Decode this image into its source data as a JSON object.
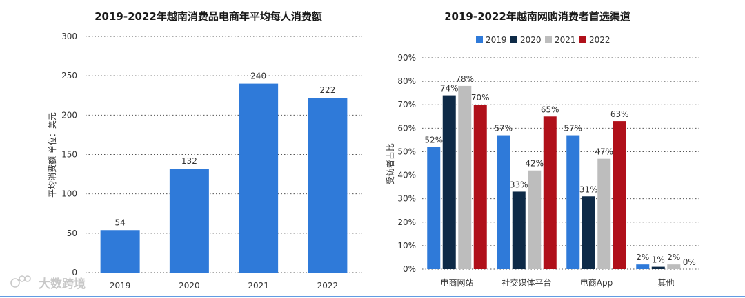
{
  "colors": {
    "c2019": "#2f7ad9",
    "c2020": "#0e2a47",
    "c2021": "#bdbdbd",
    "c2022": "#b0101a",
    "bar_left": "#2f7ad9"
  },
  "watermark": {
    "text": "大数跨境"
  },
  "chart_data": [
    {
      "type": "bar",
      "title": "2019-2022年越南消费品电商年平均每人消费额",
      "ylabel": "平均消费额 单位：美元",
      "xlabel": "",
      "categories": [
        "2019",
        "2020",
        "2021",
        "2022"
      ],
      "values": [
        54,
        132,
        240,
        222
      ],
      "value_labels": [
        "54",
        "132",
        "240",
        "222"
      ],
      "ylim": [
        0,
        300
      ],
      "yticks": [
        0,
        50,
        100,
        150,
        200,
        250,
        300
      ],
      "ytick_labels": [
        "0",
        "50",
        "100",
        "150",
        "200",
        "250",
        "300"
      ],
      "grid": true
    },
    {
      "type": "bar",
      "title": "2019-2022年越南网购消费者首选渠道",
      "ylabel": "受访者占比",
      "xlabel": "",
      "categories": [
        "电商网站",
        "社交媒体平台",
        "电商App",
        "其他"
      ],
      "series": [
        {
          "name": "2019",
          "values": [
            52,
            57,
            57,
            2
          ],
          "labels": [
            "52%",
            "57%",
            "57%",
            "2%"
          ]
        },
        {
          "name": "2020",
          "values": [
            74,
            33,
            31,
            1
          ],
          "labels": [
            "74%",
            "33%",
            "31%",
            "1%"
          ]
        },
        {
          "name": "2021",
          "values": [
            78,
            42,
            47,
            2
          ],
          "labels": [
            "78%",
            "42%",
            "47%",
            "2%"
          ]
        },
        {
          "name": "2022",
          "values": [
            70,
            65,
            63,
            0
          ],
          "labels": [
            "70%",
            "65%",
            "63%",
            "0%"
          ]
        }
      ],
      "ylim": [
        0,
        90
      ],
      "yticks": [
        0,
        10,
        20,
        30,
        40,
        50,
        60,
        70,
        80,
        90
      ],
      "ytick_labels": [
        "0%",
        "10%",
        "20%",
        "30%",
        "40%",
        "50%",
        "60%",
        "70%",
        "80%",
        "90%"
      ],
      "legend": "top",
      "grid": true
    }
  ]
}
